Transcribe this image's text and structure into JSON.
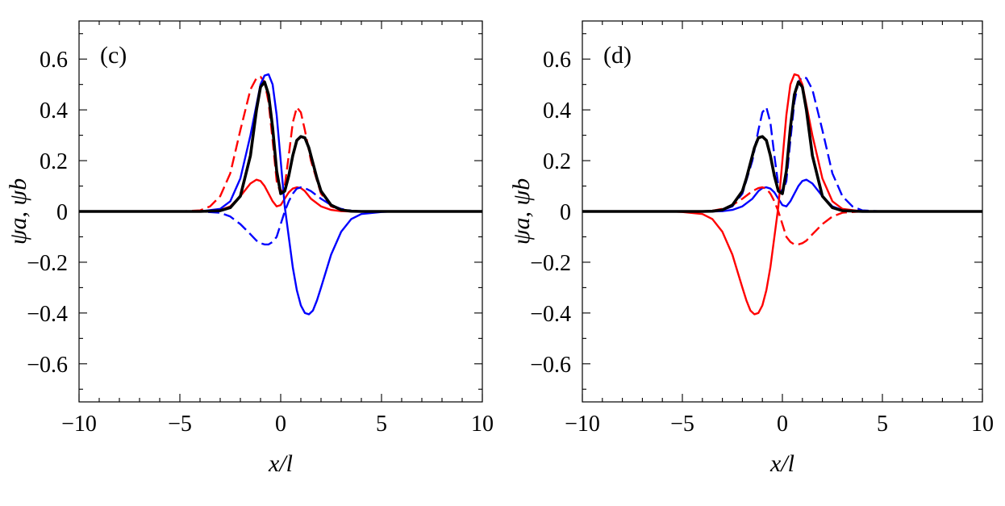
{
  "chart_data": [
    {
      "type": "line",
      "panel_label": "(c)",
      "xlabel": "x/l",
      "ylabel": "ψa, ψb",
      "xlim": [
        -10,
        10
      ],
      "ylim": [
        -0.75,
        0.75
      ],
      "xticks": [
        -10,
        -5,
        0,
        5,
        10
      ],
      "yticks": [
        -0.6,
        -0.4,
        -0.2,
        0,
        0.2,
        0.4,
        0.6
      ],
      "xtick_labels": [
        "−10",
        "−5",
        "0",
        "5",
        "10"
      ],
      "ytick_labels": [
        "−0.6",
        "−0.4",
        "−0.2",
        "0",
        "0.2",
        "0.4",
        "0.6"
      ],
      "grid": false,
      "series": [
        {
          "color": "#ff0000",
          "style": "dashed",
          "x": [
            -10,
            -5,
            -4,
            -3.5,
            -3,
            -2.5,
            -2,
            -1.5,
            -1.2,
            -1.0,
            -0.8,
            -0.6,
            -0.4,
            -0.2,
            0,
            0.2,
            0.4,
            0.6,
            0.8,
            1.0,
            1.2,
            1.5,
            2,
            2.5,
            3,
            3.5,
            4,
            5,
            10
          ],
          "y": [
            0,
            0,
            0.004,
            0.02,
            0.06,
            0.15,
            0.32,
            0.48,
            0.525,
            0.53,
            0.51,
            0.43,
            0.28,
            0.12,
            0.07,
            0.1,
            0.22,
            0.35,
            0.41,
            0.39,
            0.32,
            0.2,
            0.07,
            0.02,
            0.005,
            0.001,
            0,
            0,
            0
          ]
        },
        {
          "color": "#ff0000",
          "style": "solid",
          "x": [
            -10,
            -4,
            -3,
            -2.5,
            -2,
            -1.5,
            -1.2,
            -1.0,
            -0.8,
            -0.6,
            -0.4,
            -0.2,
            0,
            0.2,
            0.4,
            0.6,
            0.8,
            1.0,
            1.2,
            1.5,
            2,
            2.5,
            3,
            3.5,
            4,
            10
          ],
          "y": [
            0,
            0,
            0.005,
            0.02,
            0.06,
            0.11,
            0.125,
            0.12,
            0.1,
            0.07,
            0.04,
            0.02,
            0.025,
            0.05,
            0.075,
            0.09,
            0.095,
            0.092,
            0.08,
            0.05,
            0.02,
            0.006,
            0.001,
            0,
            0,
            0
          ]
        },
        {
          "color": "#0000ff",
          "style": "solid",
          "x": [
            -10,
            -4,
            -3,
            -2.5,
            -2,
            -1.5,
            -1.2,
            -1.0,
            -0.8,
            -0.6,
            -0.4,
            -0.2,
            0,
            0.2,
            0.4,
            0.6,
            0.8,
            1.0,
            1.2,
            1.4,
            1.6,
            1.8,
            2.0,
            2.5,
            3,
            3.5,
            4,
            5,
            5.5,
            10
          ],
          "y": [
            0,
            0,
            0.01,
            0.04,
            0.13,
            0.3,
            0.42,
            0.5,
            0.535,
            0.54,
            0.5,
            0.38,
            0.2,
            0.02,
            -0.1,
            -0.22,
            -0.31,
            -0.37,
            -0.4,
            -0.405,
            -0.39,
            -0.35,
            -0.3,
            -0.17,
            -0.08,
            -0.03,
            -0.01,
            -0.002,
            0,
            0
          ]
        },
        {
          "color": "#0000ff",
          "style": "dashed",
          "x": [
            -10,
            -4,
            -3,
            -2.5,
            -2,
            -1.5,
            -1.2,
            -1.0,
            -0.8,
            -0.6,
            -0.4,
            -0.2,
            0,
            0.2,
            0.4,
            0.6,
            0.8,
            1.0,
            1.2,
            1.5,
            2,
            2.5,
            3,
            3.5,
            4,
            10
          ],
          "y": [
            0,
            0,
            -0.005,
            -0.02,
            -0.05,
            -0.09,
            -0.115,
            -0.125,
            -0.13,
            -0.13,
            -0.12,
            -0.1,
            -0.05,
            0.0,
            0.04,
            0.07,
            0.09,
            0.095,
            0.092,
            0.08,
            0.05,
            0.025,
            0.01,
            0.003,
            0,
            0
          ]
        },
        {
          "color": "#000000",
          "style": "solid-thick",
          "x": [
            -10,
            -4,
            -3,
            -2.5,
            -2,
            -1.5,
            -1.2,
            -1.0,
            -0.8,
            -0.6,
            -0.4,
            -0.2,
            0,
            0.2,
            0.4,
            0.6,
            0.8,
            1.0,
            1.2,
            1.4,
            1.6,
            1.8,
            2,
            2.5,
            3,
            3.5,
            4,
            10
          ],
          "y": [
            0,
            0,
            0.003,
            0.015,
            0.06,
            0.22,
            0.4,
            0.49,
            0.51,
            0.46,
            0.33,
            0.16,
            0.07,
            0.08,
            0.14,
            0.22,
            0.28,
            0.295,
            0.29,
            0.25,
            0.19,
            0.13,
            0.08,
            0.025,
            0.006,
            0.001,
            0,
            0
          ]
        }
      ]
    },
    {
      "type": "line",
      "panel_label": "(d)",
      "xlabel": "x/l",
      "ylabel": "ψa, ψb",
      "xlim": [
        -10,
        10
      ],
      "ylim": [
        -0.75,
        0.75
      ],
      "xticks": [
        -10,
        -5,
        0,
        5,
        10
      ],
      "yticks": [
        -0.6,
        -0.4,
        -0.2,
        0,
        0.2,
        0.4,
        0.6
      ],
      "xtick_labels": [
        "−10",
        "−5",
        "0",
        "5",
        "10"
      ],
      "ytick_labels": [
        "−0.6",
        "−0.4",
        "−0.2",
        "0",
        "0.2",
        "0.4",
        "0.6"
      ],
      "grid": false,
      "series": [
        {
          "color": "#0000ff",
          "style": "dashed",
          "x": [
            -10,
            -5,
            -4,
            -3.5,
            -3,
            -2.5,
            -2,
            -1.5,
            -1.2,
            -1.0,
            -0.8,
            -0.6,
            -0.4,
            -0.2,
            0,
            0.2,
            0.4,
            0.6,
            0.8,
            1.0,
            1.2,
            1.5,
            2,
            2.5,
            3,
            3.5,
            4,
            5,
            10
          ],
          "y": [
            0,
            0,
            0,
            0.001,
            0.005,
            0.02,
            0.07,
            0.2,
            0.32,
            0.39,
            0.41,
            0.35,
            0.22,
            0.1,
            0.07,
            0.12,
            0.28,
            0.43,
            0.51,
            0.53,
            0.525,
            0.48,
            0.32,
            0.15,
            0.06,
            0.02,
            0.004,
            0,
            0
          ]
        },
        {
          "color": "#0000ff",
          "style": "solid",
          "x": [
            -10,
            -4,
            -3.5,
            -3,
            -2.5,
            -2,
            -1.5,
            -1.2,
            -1.0,
            -0.8,
            -0.6,
            -0.4,
            -0.2,
            0,
            0.2,
            0.4,
            0.6,
            0.8,
            1.0,
            1.2,
            1.5,
            2,
            2.5,
            3,
            4,
            10
          ],
          "y": [
            0,
            0,
            0,
            0.001,
            0.006,
            0.02,
            0.05,
            0.08,
            0.092,
            0.095,
            0.09,
            0.075,
            0.05,
            0.025,
            0.02,
            0.04,
            0.07,
            0.1,
            0.12,
            0.125,
            0.11,
            0.06,
            0.02,
            0.005,
            0,
            0
          ]
        },
        {
          "color": "#ff0000",
          "style": "solid",
          "x": [
            -10,
            -5.5,
            -5,
            -4,
            -3.5,
            -3,
            -2.5,
            -2.0,
            -1.8,
            -1.6,
            -1.4,
            -1.2,
            -1.0,
            -0.8,
            -0.6,
            -0.4,
            -0.2,
            0,
            0.2,
            0.4,
            0.6,
            0.8,
            1.0,
            1.2,
            1.5,
            2,
            2.5,
            3,
            4,
            10
          ],
          "y": [
            0,
            0,
            -0.002,
            -0.01,
            -0.03,
            -0.08,
            -0.17,
            -0.3,
            -0.35,
            -0.39,
            -0.405,
            -0.4,
            -0.37,
            -0.31,
            -0.22,
            -0.1,
            0.02,
            0.2,
            0.38,
            0.5,
            0.54,
            0.535,
            0.5,
            0.42,
            0.3,
            0.13,
            0.04,
            0.01,
            0,
            0
          ]
        },
        {
          "color": "#ff0000",
          "style": "dashed",
          "x": [
            -10,
            -4,
            -3.5,
            -3,
            -2.5,
            -2,
            -1.5,
            -1.2,
            -1.0,
            -0.8,
            -0.6,
            -0.4,
            -0.2,
            0,
            0.2,
            0.4,
            0.6,
            0.8,
            1.0,
            1.2,
            1.5,
            2,
            2.5,
            3,
            4,
            10
          ],
          "y": [
            0,
            0,
            0.003,
            0.01,
            0.025,
            0.05,
            0.08,
            0.092,
            0.095,
            0.09,
            0.07,
            0.04,
            0.0,
            -0.05,
            -0.1,
            -0.12,
            -0.13,
            -0.13,
            -0.125,
            -0.115,
            -0.09,
            -0.05,
            -0.02,
            -0.005,
            0,
            0
          ]
        },
        {
          "color": "#000000",
          "style": "solid-thick",
          "x": [
            -10,
            -4,
            -3.5,
            -3,
            -2.5,
            -2,
            -1.8,
            -1.6,
            -1.4,
            -1.2,
            -1.0,
            -0.8,
            -0.6,
            -0.4,
            -0.2,
            0,
            0.2,
            0.4,
            0.6,
            0.8,
            1.0,
            1.2,
            1.5,
            2,
            2.5,
            3,
            4,
            10
          ],
          "y": [
            0,
            0,
            0.001,
            0.006,
            0.025,
            0.08,
            0.13,
            0.19,
            0.25,
            0.29,
            0.295,
            0.28,
            0.22,
            0.14,
            0.08,
            0.07,
            0.16,
            0.33,
            0.46,
            0.51,
            0.49,
            0.4,
            0.22,
            0.06,
            0.015,
            0.003,
            0,
            0
          ]
        }
      ]
    }
  ]
}
